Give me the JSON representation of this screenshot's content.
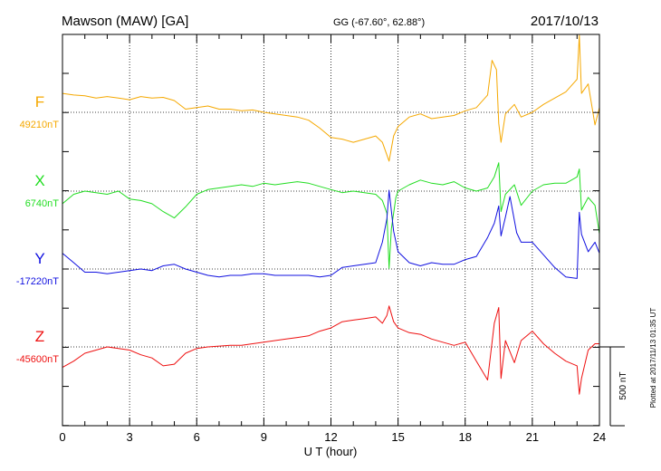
{
  "header": {
    "station": "Mawson (MAW)  [GA]",
    "coords": "GG (-67.60°,  62.88°)",
    "date": "2017/10/13"
  },
  "footer": {
    "plotted": "Plotted at 2017/11/13 01:35 UT",
    "scale_label": "500 nT"
  },
  "chart_data": {
    "type": "line",
    "xlabel": "U T (hour)",
    "xlim": [
      0,
      24
    ],
    "xticks": [
      0,
      3,
      6,
      9,
      12,
      15,
      18,
      21,
      24
    ],
    "scale_nT": 500,
    "series": [
      {
        "name": "F",
        "baseline_label": "49210nT",
        "baseline": 49210,
        "color": "#f5a800",
        "points": [
          [
            0,
            49330
          ],
          [
            0.5,
            49320
          ],
          [
            1,
            49315
          ],
          [
            1.5,
            49300
          ],
          [
            2,
            49310
          ],
          [
            2.5,
            49300
          ],
          [
            3,
            49290
          ],
          [
            3.5,
            49310
          ],
          [
            4,
            49300
          ],
          [
            4.5,
            49305
          ],
          [
            5,
            49285
          ],
          [
            5.5,
            49230
          ],
          [
            6,
            49240
          ],
          [
            6.5,
            49250
          ],
          [
            7,
            49230
          ],
          [
            7.5,
            49230
          ],
          [
            8,
            49220
          ],
          [
            8.5,
            49225
          ],
          [
            9,
            49210
          ],
          [
            9.5,
            49200
          ],
          [
            10,
            49190
          ],
          [
            10.5,
            49180
          ],
          [
            11,
            49160
          ],
          [
            11.5,
            49110
          ],
          [
            12,
            49050
          ],
          [
            12.5,
            49040
          ],
          [
            13,
            49020
          ],
          [
            13.5,
            49040
          ],
          [
            14,
            49060
          ],
          [
            14.3,
            49020
          ],
          [
            14.6,
            48900
          ],
          [
            14.8,
            49060
          ],
          [
            15,
            49120
          ],
          [
            15.5,
            49180
          ],
          [
            16,
            49200
          ],
          [
            16.5,
            49170
          ],
          [
            17,
            49180
          ],
          [
            17.5,
            49190
          ],
          [
            18,
            49220
          ],
          [
            18.5,
            49240
          ],
          [
            19,
            49320
          ],
          [
            19.2,
            49540
          ],
          [
            19.4,
            49480
          ],
          [
            19.5,
            49140
          ],
          [
            19.6,
            49020
          ],
          [
            19.8,
            49200
          ],
          [
            20.2,
            49260
          ],
          [
            20.5,
            49180
          ],
          [
            21,
            49210
          ],
          [
            21.5,
            49260
          ],
          [
            22,
            49300
          ],
          [
            22.5,
            49340
          ],
          [
            23,
            49420
          ],
          [
            23.1,
            49700
          ],
          [
            23.2,
            49330
          ],
          [
            23.5,
            49390
          ],
          [
            23.8,
            49130
          ],
          [
            24,
            49240
          ]
        ]
      },
      {
        "name": "X",
        "baseline_label": "6740nT",
        "baseline": 6740,
        "color": "#22dd22",
        "points": [
          [
            0,
            6660
          ],
          [
            0.5,
            6720
          ],
          [
            1,
            6740
          ],
          [
            1.5,
            6730
          ],
          [
            2,
            6720
          ],
          [
            2.5,
            6740
          ],
          [
            3,
            6690
          ],
          [
            3.5,
            6680
          ],
          [
            4,
            6660
          ],
          [
            4.5,
            6610
          ],
          [
            5,
            6570
          ],
          [
            5.5,
            6640
          ],
          [
            6,
            6720
          ],
          [
            6.5,
            6750
          ],
          [
            7,
            6760
          ],
          [
            7.5,
            6770
          ],
          [
            8,
            6780
          ],
          [
            8.5,
            6770
          ],
          [
            9,
            6790
          ],
          [
            9.5,
            6780
          ],
          [
            10,
            6790
          ],
          [
            10.5,
            6800
          ],
          [
            11,
            6790
          ],
          [
            11.5,
            6770
          ],
          [
            12,
            6750
          ],
          [
            12.5,
            6730
          ],
          [
            13,
            6740
          ],
          [
            13.5,
            6730
          ],
          [
            14,
            6720
          ],
          [
            14.3,
            6680
          ],
          [
            14.5,
            6600
          ],
          [
            14.6,
            6250
          ],
          [
            14.7,
            6500
          ],
          [
            14.9,
            6700
          ],
          [
            15,
            6740
          ],
          [
            15.5,
            6780
          ],
          [
            16,
            6810
          ],
          [
            16.5,
            6790
          ],
          [
            17,
            6780
          ],
          [
            17.5,
            6800
          ],
          [
            18,
            6760
          ],
          [
            18.5,
            6740
          ],
          [
            19,
            6760
          ],
          [
            19.3,
            6830
          ],
          [
            19.5,
            6920
          ],
          [
            19.6,
            6610
          ],
          [
            19.8,
            6720
          ],
          [
            20.2,
            6780
          ],
          [
            20.5,
            6650
          ],
          [
            21,
            6740
          ],
          [
            21.5,
            6780
          ],
          [
            22,
            6790
          ],
          [
            22.5,
            6790
          ],
          [
            23,
            6830
          ],
          [
            23.1,
            6880
          ],
          [
            23.2,
            6620
          ],
          [
            23.5,
            6700
          ],
          [
            23.8,
            6650
          ],
          [
            24,
            6470
          ]
        ]
      },
      {
        "name": "Y",
        "baseline_label": "-17220nT",
        "baseline": -17220,
        "color": "#1010e0",
        "points": [
          [
            0,
            -17120
          ],
          [
            0.5,
            -17180
          ],
          [
            1,
            -17240
          ],
          [
            1.5,
            -17240
          ],
          [
            2,
            -17250
          ],
          [
            2.5,
            -17240
          ],
          [
            3,
            -17230
          ],
          [
            3.5,
            -17220
          ],
          [
            4,
            -17230
          ],
          [
            4.5,
            -17200
          ],
          [
            5,
            -17190
          ],
          [
            5.5,
            -17220
          ],
          [
            6,
            -17240
          ],
          [
            6.5,
            -17260
          ],
          [
            7,
            -17270
          ],
          [
            7.5,
            -17260
          ],
          [
            8,
            -17260
          ],
          [
            8.5,
            -17250
          ],
          [
            9,
            -17250
          ],
          [
            9.5,
            -17260
          ],
          [
            10,
            -17260
          ],
          [
            10.5,
            -17260
          ],
          [
            11,
            -17260
          ],
          [
            11.5,
            -17270
          ],
          [
            12,
            -17260
          ],
          [
            12.5,
            -17210
          ],
          [
            13,
            -17200
          ],
          [
            13.5,
            -17190
          ],
          [
            14,
            -17180
          ],
          [
            14.3,
            -17050
          ],
          [
            14.5,
            -16900
          ],
          [
            14.6,
            -16720
          ],
          [
            14.8,
            -16980
          ],
          [
            15,
            -17110
          ],
          [
            15.5,
            -17180
          ],
          [
            16,
            -17200
          ],
          [
            16.5,
            -17180
          ],
          [
            17,
            -17190
          ],
          [
            17.5,
            -17190
          ],
          [
            18,
            -17160
          ],
          [
            18.5,
            -17140
          ],
          [
            19,
            -17020
          ],
          [
            19.3,
            -16930
          ],
          [
            19.5,
            -16820
          ],
          [
            19.6,
            -17010
          ],
          [
            19.8,
            -16890
          ],
          [
            20,
            -16760
          ],
          [
            20.3,
            -16990
          ],
          [
            20.5,
            -17050
          ],
          [
            21,
            -17050
          ],
          [
            21.5,
            -17130
          ],
          [
            22,
            -17210
          ],
          [
            22.5,
            -17270
          ],
          [
            23,
            -17280
          ],
          [
            23.1,
            -16860
          ],
          [
            23.2,
            -17000
          ],
          [
            23.5,
            -17110
          ],
          [
            23.8,
            -17050
          ],
          [
            24,
            -17120
          ]
        ]
      },
      {
        "name": "Z",
        "baseline_label": "-45600nT",
        "baseline": -45600,
        "color": "#ee1010",
        "points": [
          [
            0,
            -45730
          ],
          [
            0.5,
            -45690
          ],
          [
            1,
            -45640
          ],
          [
            1.5,
            -45620
          ],
          [
            2,
            -45600
          ],
          [
            2.5,
            -45610
          ],
          [
            3,
            -45620
          ],
          [
            3.5,
            -45650
          ],
          [
            4,
            -45670
          ],
          [
            4.5,
            -45720
          ],
          [
            5,
            -45710
          ],
          [
            5.5,
            -45640
          ],
          [
            6,
            -45610
          ],
          [
            6.5,
            -45600
          ],
          [
            7,
            -45595
          ],
          [
            7.5,
            -45590
          ],
          [
            8,
            -45590
          ],
          [
            8.5,
            -45580
          ],
          [
            9,
            -45570
          ],
          [
            9.5,
            -45560
          ],
          [
            10,
            -45550
          ],
          [
            10.5,
            -45540
          ],
          [
            11,
            -45530
          ],
          [
            11.5,
            -45500
          ],
          [
            12,
            -45480
          ],
          [
            12.5,
            -45440
          ],
          [
            13,
            -45430
          ],
          [
            13.5,
            -45420
          ],
          [
            14,
            -45410
          ],
          [
            14.3,
            -45450
          ],
          [
            14.5,
            -45400
          ],
          [
            14.6,
            -45340
          ],
          [
            14.8,
            -45440
          ],
          [
            15,
            -45480
          ],
          [
            15.5,
            -45510
          ],
          [
            16,
            -45520
          ],
          [
            16.5,
            -45550
          ],
          [
            17,
            -45570
          ],
          [
            17.5,
            -45590
          ],
          [
            18,
            -45570
          ],
          [
            18.5,
            -45690
          ],
          [
            19,
            -45810
          ],
          [
            19.3,
            -45450
          ],
          [
            19.5,
            -45350
          ],
          [
            19.6,
            -45800
          ],
          [
            19.8,
            -45560
          ],
          [
            20.2,
            -45700
          ],
          [
            20.5,
            -45560
          ],
          [
            21,
            -45500
          ],
          [
            21.5,
            -45580
          ],
          [
            22,
            -45640
          ],
          [
            22.5,
            -45690
          ],
          [
            23,
            -45720
          ],
          [
            23.1,
            -45900
          ],
          [
            23.2,
            -45800
          ],
          [
            23.5,
            -45620
          ],
          [
            23.8,
            -45580
          ],
          [
            24,
            -45580
          ]
        ]
      }
    ]
  }
}
